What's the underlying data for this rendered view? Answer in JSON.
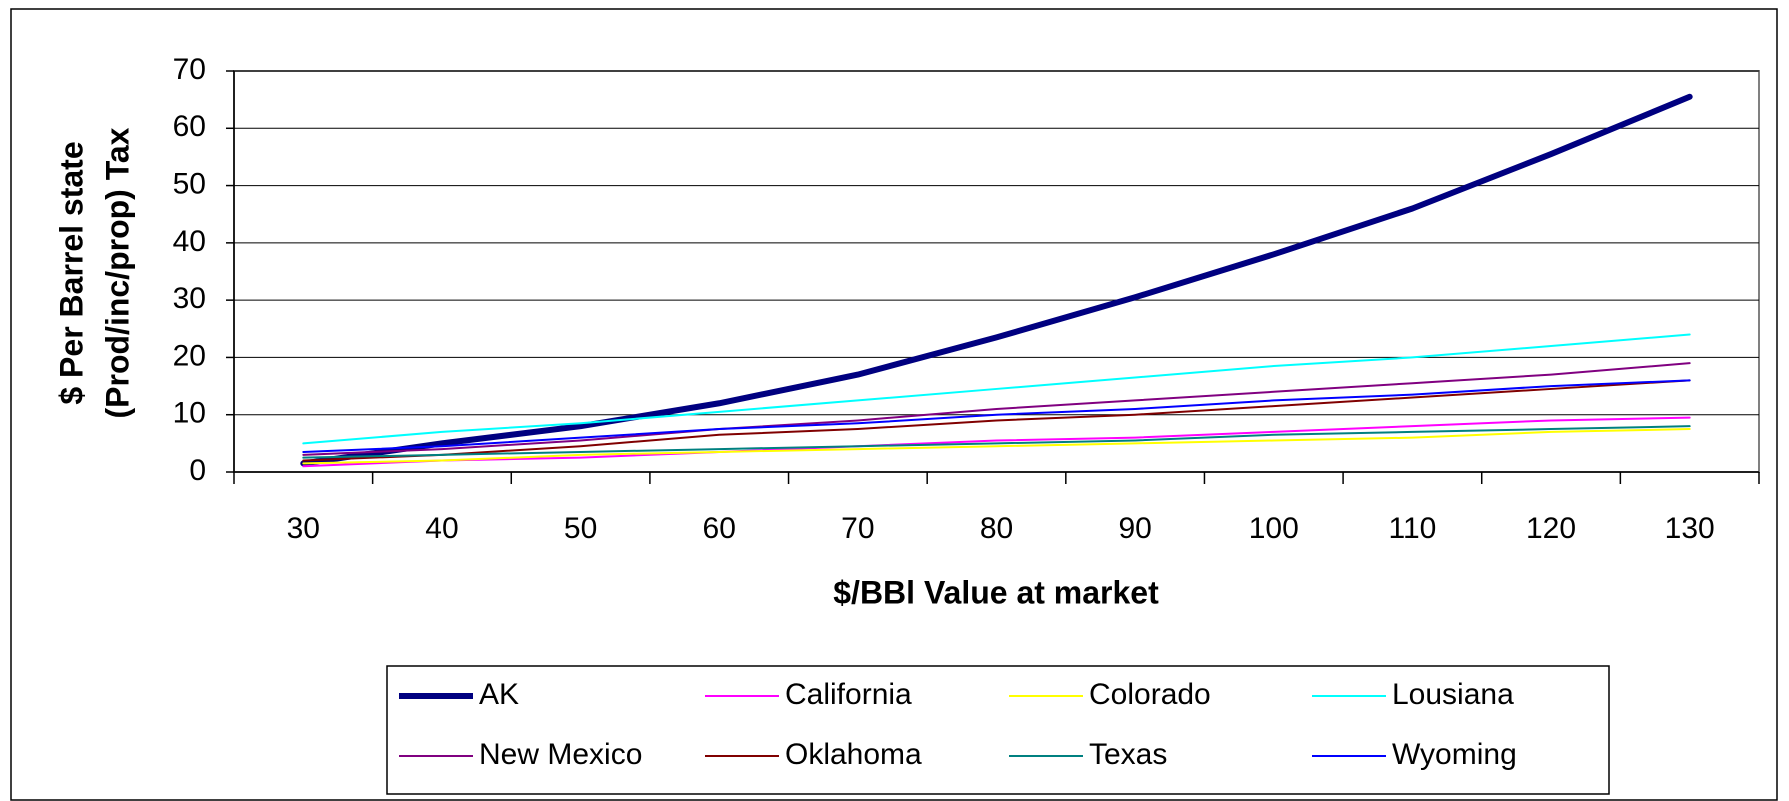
{
  "chart_data": {
    "type": "line",
    "xlabel": "$/BBl Value at market",
    "ylabel": [
      "$ Per Barrel state",
      "(Prod/inc/prop) Tax"
    ],
    "categories": [
      "30",
      "40",
      "50",
      "60",
      "70",
      "80",
      "90",
      "100",
      "110",
      "120",
      "130"
    ],
    "ylim": [
      0,
      70
    ],
    "yticks": [
      0,
      10,
      20,
      30,
      40,
      50,
      60,
      70
    ],
    "grid": true,
    "legend": "bottom",
    "series": [
      {
        "name": "AK",
        "color": "#000080",
        "width": 6,
        "values": [
          1.5,
          5,
          8,
          12,
          17,
          23.5,
          30.5,
          38,
          46,
          55.5,
          65.5
        ]
      },
      {
        "name": "California",
        "color": "#ff00ff",
        "width": 2,
        "values": [
          1,
          2,
          2.5,
          3.5,
          4.5,
          5.5,
          6,
          7,
          8,
          9,
          9.5
        ]
      },
      {
        "name": "Colorado",
        "color": "#ffff00",
        "width": 2,
        "values": [
          1.5,
          2,
          3,
          3.5,
          4,
          4.5,
          5,
          5.5,
          6,
          7,
          7.5
        ]
      },
      {
        "name": "Lousiana",
        "color": "#00ffff",
        "width": 2,
        "values": [
          5,
          7,
          8.5,
          10.5,
          12.5,
          14.5,
          16.5,
          18.5,
          20,
          22,
          24
        ]
      },
      {
        "name": "New Mexico",
        "color": "#800080",
        "width": 2,
        "values": [
          3,
          4,
          5.5,
          7.5,
          9,
          11,
          12.5,
          14,
          15.5,
          17,
          19
        ]
      },
      {
        "name": "Oklahoma",
        "color": "#800000",
        "width": 2,
        "values": [
          2,
          3,
          4.5,
          6.5,
          7.5,
          9,
          10,
          11.5,
          13,
          14.5,
          16
        ]
      },
      {
        "name": "Texas",
        "color": "#008080",
        "width": 2,
        "values": [
          2.5,
          3,
          3.5,
          4,
          4.5,
          5,
          5.5,
          6.5,
          7,
          7.5,
          8
        ]
      },
      {
        "name": "Wyoming",
        "color": "#0000ff",
        "width": 2,
        "values": [
          3.5,
          4.5,
          6,
          7.5,
          8.5,
          10,
          11,
          12.5,
          13.5,
          15,
          16
        ]
      }
    ]
  }
}
